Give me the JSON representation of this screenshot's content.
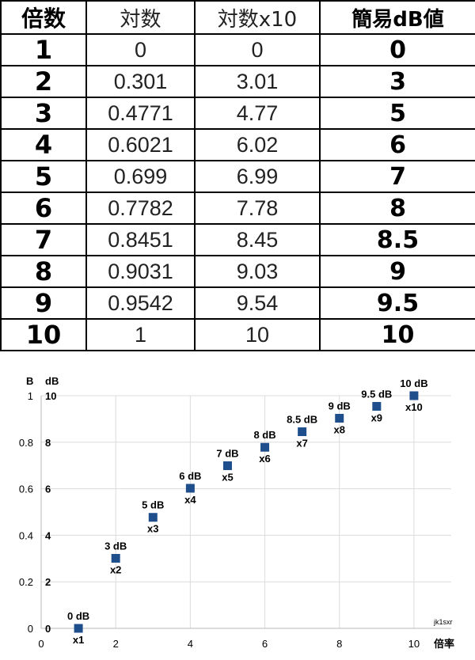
{
  "table": {
    "headers": [
      "倍数",
      "対数",
      "対数x10",
      "簡易dB値"
    ],
    "rows": [
      [
        "1",
        "0",
        "0",
        "0"
      ],
      [
        "2",
        "0.301",
        "3.01",
        "3"
      ],
      [
        "3",
        "0.4771",
        "4.77",
        "5"
      ],
      [
        "4",
        "0.6021",
        "6.02",
        "6"
      ],
      [
        "5",
        "0.699",
        "6.99",
        "7"
      ],
      [
        "6",
        "0.7782",
        "7.78",
        "8"
      ],
      [
        "7",
        "0.8451",
        "8.45",
        "8.5"
      ],
      [
        "8",
        "0.9031",
        "9.03",
        "9"
      ],
      [
        "9",
        "0.9542",
        "9.54",
        "9.5"
      ],
      [
        "10",
        "1",
        "10",
        "10"
      ]
    ]
  },
  "chart_data": {
    "type": "scatter",
    "xlabel": "倍率",
    "ylabel": "B",
    "y2label": "dB",
    "xlim": [
      0,
      11
    ],
    "ylim": [
      0,
      1
    ],
    "xticks": [
      "0",
      "2",
      "4",
      "6",
      "8",
      "10"
    ],
    "yticks": [
      "0",
      "0.2",
      "0.4",
      "0.6",
      "0.8",
      "1"
    ],
    "y2ticks": [
      "0",
      "2",
      "4",
      "6",
      "8",
      "10"
    ],
    "grid": true,
    "marker_color": "#1f4e8c",
    "points": [
      {
        "x": 1,
        "y": 0,
        "db_label": "0 dB",
        "mult_label": "x1"
      },
      {
        "x": 2,
        "y": 0.301,
        "db_label": "3 dB",
        "mult_label": "x2"
      },
      {
        "x": 3,
        "y": 0.4771,
        "db_label": "5 dB",
        "mult_label": "x3"
      },
      {
        "x": 4,
        "y": 0.6021,
        "db_label": "6 dB",
        "mult_label": "x4"
      },
      {
        "x": 5,
        "y": 0.699,
        "db_label": "7 dB",
        "mult_label": "x5"
      },
      {
        "x": 6,
        "y": 0.7782,
        "db_label": "8 dB",
        "mult_label": "x6"
      },
      {
        "x": 7,
        "y": 0.8451,
        "db_label": "8.5 dB",
        "mult_label": "x7"
      },
      {
        "x": 8,
        "y": 0.9031,
        "db_label": "9 dB",
        "mult_label": "x8"
      },
      {
        "x": 9,
        "y": 0.9542,
        "db_label": "9.5 dB",
        "mult_label": "x9"
      },
      {
        "x": 10,
        "y": 1,
        "db_label": "10 dB",
        "mult_label": "x10"
      }
    ],
    "credit": "jk1sxr"
  }
}
